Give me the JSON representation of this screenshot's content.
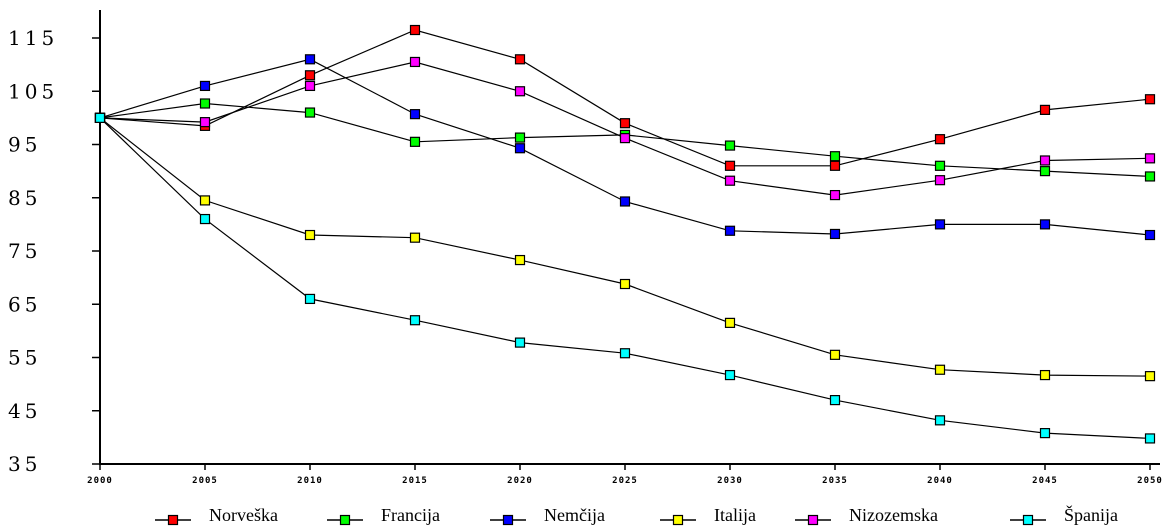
{
  "chart_data": {
    "type": "line",
    "x": [
      2000,
      2005,
      2010,
      2015,
      2020,
      2025,
      2030,
      2035,
      2040,
      2045,
      2050
    ],
    "x_tick_labels": [
      "2000",
      "2005",
      "2010",
      "2015",
      "2020",
      "2025",
      "2030",
      "2035",
      "2040",
      "2045",
      "2050"
    ],
    "y_ticks": [
      35,
      45,
      55,
      65,
      75,
      85,
      95,
      105,
      115
    ],
    "y_tick_labels": [
      "35",
      "45",
      "55",
      "65",
      "75",
      "85",
      "95",
      "105",
      "115"
    ],
    "ylim": [
      35,
      118
    ],
    "grid": false,
    "legend_position": "bottom",
    "series": [
      {
        "name": "Norveška",
        "color": "#ff0000",
        "values": [
          100,
          98.5,
          108,
          116.5,
          111,
          99,
          91,
          91,
          96,
          101.5,
          103.5
        ]
      },
      {
        "name": "Francija",
        "color": "#00ff00",
        "values": [
          100,
          102.7,
          101,
          95.5,
          96.3,
          96.8,
          94.8,
          92.8,
          91,
          90,
          89
        ]
      },
      {
        "name": "Nemčija",
        "color": "#0000ff",
        "values": [
          100,
          106,
          111,
          100.7,
          94.3,
          84.3,
          78.8,
          78.2,
          80,
          80,
          78
        ]
      },
      {
        "name": "Italija",
        "color": "#ffff00",
        "values": [
          100,
          84.5,
          78,
          77.5,
          73.3,
          68.8,
          61.5,
          55.5,
          52.7,
          51.7,
          51.5
        ]
      },
      {
        "name": "Nizozemska",
        "color": "#ff00ff",
        "values": [
          100,
          99.2,
          106,
          110.5,
          105,
          96.2,
          88.2,
          85.5,
          88.3,
          92,
          92.4
        ]
      },
      {
        "name": "Španija",
        "color": "#00ffff",
        "values": [
          100,
          81,
          66,
          62,
          57.8,
          55.8,
          51.7,
          47,
          43.2,
          40.8,
          39.8
        ]
      }
    ]
  }
}
